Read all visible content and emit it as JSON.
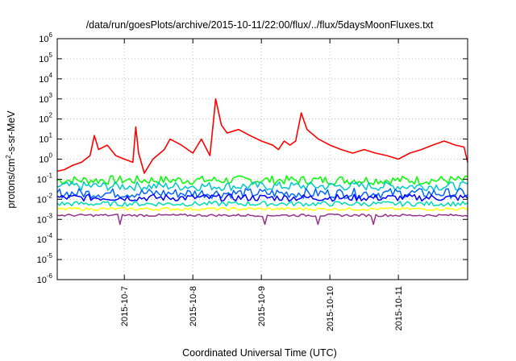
{
  "chart_data": {
    "type": "line",
    "title": "/data/run/goesPlots/archive/2015-10-11/22:00/flux/../flux/5daysMoonFluxes.txt",
    "xlabel": "Coordinated Universal Time (UTC)",
    "ylabel": "protons/cm²-s-sr-MeV",
    "ylabel_parts": {
      "pre": "protons/cm",
      "sup": "2",
      "post": "-s-sr-MeV"
    },
    "xscale": "time",
    "xlim": [
      "2015-10-06T00:30",
      "2015-10-12T00:15"
    ],
    "x_ticks": [
      "2015-10-7",
      "2015-10-8",
      "2015-10-9",
      "2015-10-10",
      "2015-10-11"
    ],
    "yscale": "log",
    "ylim": [
      1e-06,
      1000000.0
    ],
    "y_ticks": [
      {
        "base": "10",
        "exp": "-6"
      },
      {
        "base": "10",
        "exp": "-5"
      },
      {
        "base": "10",
        "exp": "-4"
      },
      {
        "base": "10",
        "exp": "-3"
      },
      {
        "base": "10",
        "exp": "-2"
      },
      {
        "base": "10",
        "exp": "-1"
      },
      {
        "base": "10",
        "exp": "0"
      },
      {
        "base": "10",
        "exp": "1"
      },
      {
        "base": "10",
        "exp": "2"
      },
      {
        "base": "10",
        "exp": "3"
      },
      {
        "base": "10",
        "exp": "4"
      },
      {
        "base": "10",
        "exp": "5"
      },
      {
        "base": "10",
        "exp": "6"
      }
    ],
    "grid": true,
    "legend": "none",
    "series": [
      {
        "color": "#ff0000",
        "points": [
          [
            "2015-10-06T00:30",
            0.25
          ],
          [
            "2015-10-06T03:00",
            0.3
          ],
          [
            "2015-10-06T06:00",
            0.5
          ],
          [
            "2015-10-06T09:00",
            0.7
          ],
          [
            "2015-10-06T12:00",
            1.5
          ],
          [
            "2015-10-06T13:30",
            15
          ],
          [
            "2015-10-06T15:00",
            3
          ],
          [
            "2015-10-06T18:00",
            5
          ],
          [
            "2015-10-06T21:00",
            1.5
          ],
          [
            "2015-10-07T00:00",
            1.0
          ],
          [
            "2015-10-07T03:00",
            0.7
          ],
          [
            "2015-10-07T04:00",
            40
          ],
          [
            "2015-10-07T05:00",
            2
          ],
          [
            "2015-10-07T07:00",
            0.2
          ],
          [
            "2015-10-07T10:00",
            1.0
          ],
          [
            "2015-10-07T14:00",
            3
          ],
          [
            "2015-10-07T16:00",
            10
          ],
          [
            "2015-10-07T20:00",
            5
          ],
          [
            "2015-10-08T00:00",
            2
          ],
          [
            "2015-10-08T03:00",
            10
          ],
          [
            "2015-10-08T06:00",
            1.5
          ],
          [
            "2015-10-08T08:00",
            1000
          ],
          [
            "2015-10-08T10:00",
            50
          ],
          [
            "2015-10-08T12:00",
            20
          ],
          [
            "2015-10-08T16:00",
            30
          ],
          [
            "2015-10-08T20:00",
            15
          ],
          [
            "2015-10-09T00:00",
            8
          ],
          [
            "2015-10-09T04:00",
            5
          ],
          [
            "2015-10-09T06:00",
            3
          ],
          [
            "2015-10-09T08:00",
            8
          ],
          [
            "2015-10-09T10:00",
            5
          ],
          [
            "2015-10-09T12:00",
            8
          ],
          [
            "2015-10-09T14:00",
            200
          ],
          [
            "2015-10-09T16:00",
            30
          ],
          [
            "2015-10-09T20:00",
            10
          ],
          [
            "2015-10-10T00:00",
            5
          ],
          [
            "2015-10-10T04:00",
            3
          ],
          [
            "2015-10-10T08:00",
            2
          ],
          [
            "2015-10-10T12:00",
            3
          ],
          [
            "2015-10-10T16:00",
            2
          ],
          [
            "2015-10-10T20:00",
            1.5
          ],
          [
            "2015-10-11T00:00",
            1.0
          ],
          [
            "2015-10-11T04:00",
            2
          ],
          [
            "2015-10-11T08:00",
            3
          ],
          [
            "2015-10-11T12:00",
            5
          ],
          [
            "2015-10-11T16:00",
            8
          ],
          [
            "2015-10-11T20:00",
            5
          ],
          [
            "2015-10-11T23:00",
            4
          ],
          [
            "2015-10-12T00:15",
            0.7
          ]
        ]
      },
      {
        "color": "#00ff00",
        "baseline": 0.09,
        "spread": 0.45
      },
      {
        "color": "#00c8c8",
        "baseline": 0.045,
        "spread": 0.45
      },
      {
        "color": "#0064ff",
        "baseline": 0.02,
        "spread": 0.5
      },
      {
        "color": "#0000ff",
        "baseline": 0.012,
        "spread": 0.35
      },
      {
        "color": "#00dcb4",
        "baseline": 0.006,
        "spread": 0.25
      },
      {
        "color": "#ffff00",
        "baseline": 0.0033,
        "spread": 0.15
      },
      {
        "color": "#96328c",
        "baseline": 0.0016,
        "spread": 0.12
      }
    ]
  }
}
